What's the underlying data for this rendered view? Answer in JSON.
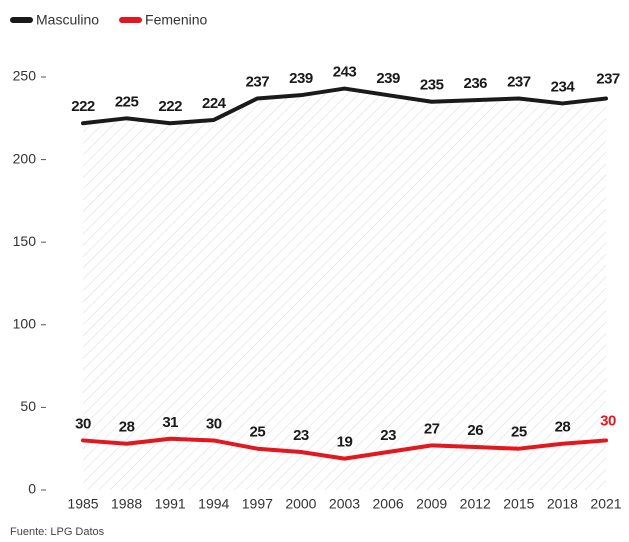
{
  "chart_data": {
    "type": "line",
    "categories": [
      "1985",
      "1988",
      "1991",
      "1994",
      "1997",
      "2000",
      "2003",
      "2006",
      "2009",
      "2012",
      "2015",
      "2018",
      "2021"
    ],
    "series": [
      {
        "name": "Masculino",
        "color": "#1a1a1a",
        "values": [
          222,
          225,
          222,
          224,
          237,
          239,
          243,
          239,
          235,
          236,
          237,
          234,
          237
        ]
      },
      {
        "name": "Femenino",
        "color": "#e3171e",
        "values": [
          30,
          28,
          31,
          30,
          25,
          23,
          19,
          23,
          27,
          26,
          25,
          28,
          30
        ]
      }
    ],
    "ylim": [
      0,
      250
    ],
    "yticks": [
      0,
      50,
      100,
      150,
      200,
      250
    ],
    "legend": "top-left",
    "source": "Fuente: LPG Datos"
  }
}
